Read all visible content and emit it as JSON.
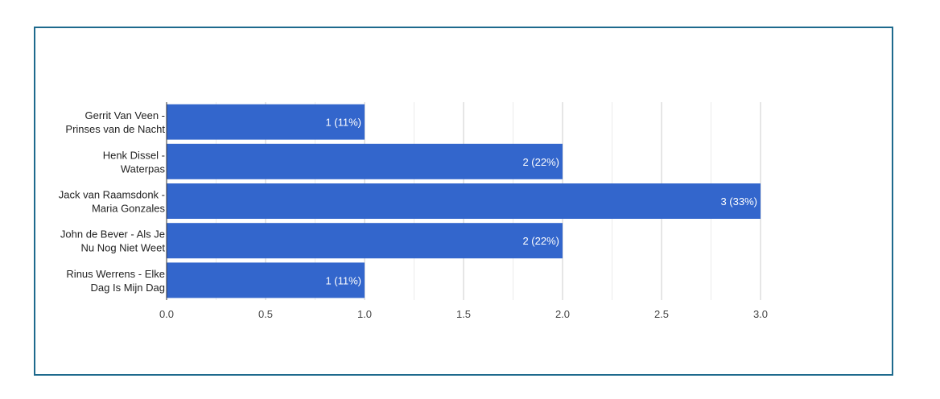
{
  "chart_data": {
    "type": "bar",
    "orientation": "horizontal",
    "categories": [
      [
        "Gerrit Van Veen -",
        "Prinses van de Nacht"
      ],
      [
        "Henk Dissel -",
        "Waterpas"
      ],
      [
        "Jack van Raamsdonk -",
        "Maria Gonzales"
      ],
      [
        "John de Bever - Als Je",
        "Nu Nog Niet Weet"
      ],
      [
        "Rinus Werrens - Elke",
        "Dag Is Mijn Dag"
      ]
    ],
    "values": [
      1,
      2,
      3,
      2,
      1
    ],
    "data_labels": [
      "1 (11%)",
      "2 (22%)",
      "3 (33%)",
      "2 (22%)",
      "1 (11%)"
    ],
    "xlim": [
      0,
      3.125
    ],
    "xticks": [
      0,
      0.5,
      1,
      1.5,
      2,
      2.5,
      3
    ],
    "xtick_labels": [
      "0.0",
      "0.5",
      "1.0",
      "1.5",
      "2.0",
      "2.5",
      "3.0"
    ],
    "minor_gridlines": [
      0.25,
      0.75,
      1.25,
      1.75,
      2.25,
      2.75
    ],
    "grid": true,
    "legend": "none",
    "title": "",
    "xlabel": "",
    "ylabel": "",
    "colors": {
      "bar": "#3366cc",
      "frame": "#1e6a8d",
      "major_grid": "#cccccc",
      "minor_grid": "#ebebeb",
      "axis": "#333333"
    }
  }
}
